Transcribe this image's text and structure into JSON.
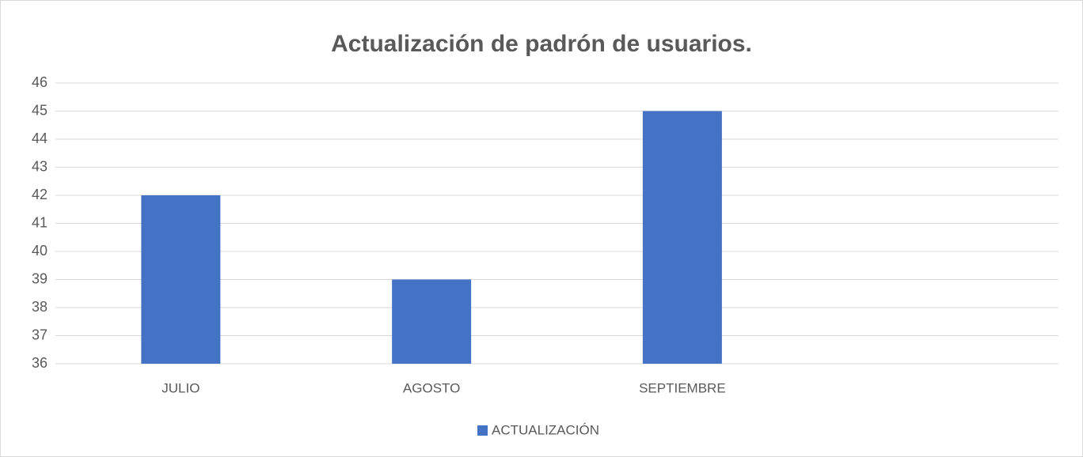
{
  "chart_data": {
    "type": "bar",
    "title": "Actualización de padrón de usuarios.",
    "categories": [
      "JULIO",
      "AGOSTO",
      "SEPTIEMBRE",
      null
    ],
    "series": [
      {
        "name": "ACTUALIZACIÓN",
        "color": "#4472c4",
        "values": [
          42,
          39,
          45,
          null
        ]
      }
    ],
    "ylim": [
      36,
      46
    ],
    "yticks": [
      36,
      37,
      38,
      39,
      40,
      41,
      42,
      43,
      44,
      45,
      46
    ],
    "grid": true,
    "legend": "bottom"
  }
}
